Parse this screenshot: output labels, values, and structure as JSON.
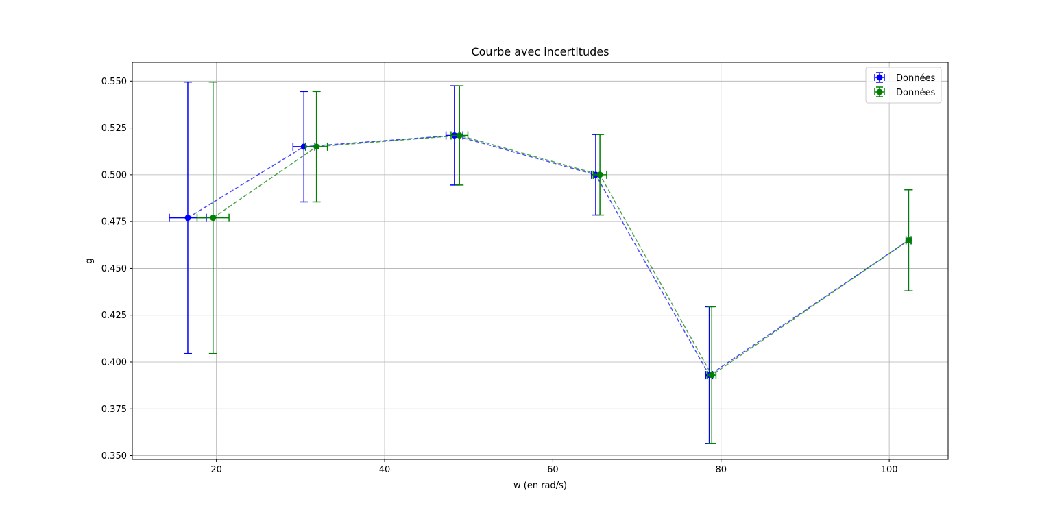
{
  "chart_data": {
    "type": "scatter",
    "title": "Courbe avec incertitudes",
    "xlabel": "w (en rad/s)",
    "ylabel": "g",
    "xlim": [
      10,
      107
    ],
    "ylim": [
      0.348,
      0.56
    ],
    "xticks": [
      20,
      40,
      60,
      80,
      100
    ],
    "yticks": [
      0.35,
      0.375,
      0.4,
      0.425,
      0.45,
      0.475,
      0.5,
      0.525,
      0.55
    ],
    "grid": true,
    "legend_position": "top-right",
    "series": [
      {
        "name": "Données",
        "color": "#0000ff",
        "line_style": "dashed",
        "x": [
          16.6,
          30.4,
          48.3,
          65.1,
          78.6,
          102.3
        ],
        "y": [
          0.477,
          0.515,
          0.521,
          0.5,
          0.393,
          0.465
        ],
        "xerr": [
          2.2,
          1.3,
          1.0,
          0.5,
          0.4,
          0.3
        ],
        "yerr": [
          0.0725,
          0.0295,
          0.0265,
          0.0215,
          0.0365,
          0.027
        ]
      },
      {
        "name": "Données",
        "color": "#008000",
        "line_style": "dashed",
        "x": [
          19.6,
          31.9,
          48.9,
          65.6,
          78.9,
          102.3
        ],
        "y": [
          0.477,
          0.515,
          0.521,
          0.5,
          0.393,
          0.465
        ],
        "xerr": [
          1.9,
          1.3,
          1.0,
          0.8,
          0.5,
          0.3
        ],
        "yerr": [
          0.0725,
          0.0295,
          0.0265,
          0.0215,
          0.0365,
          0.027
        ]
      }
    ]
  }
}
